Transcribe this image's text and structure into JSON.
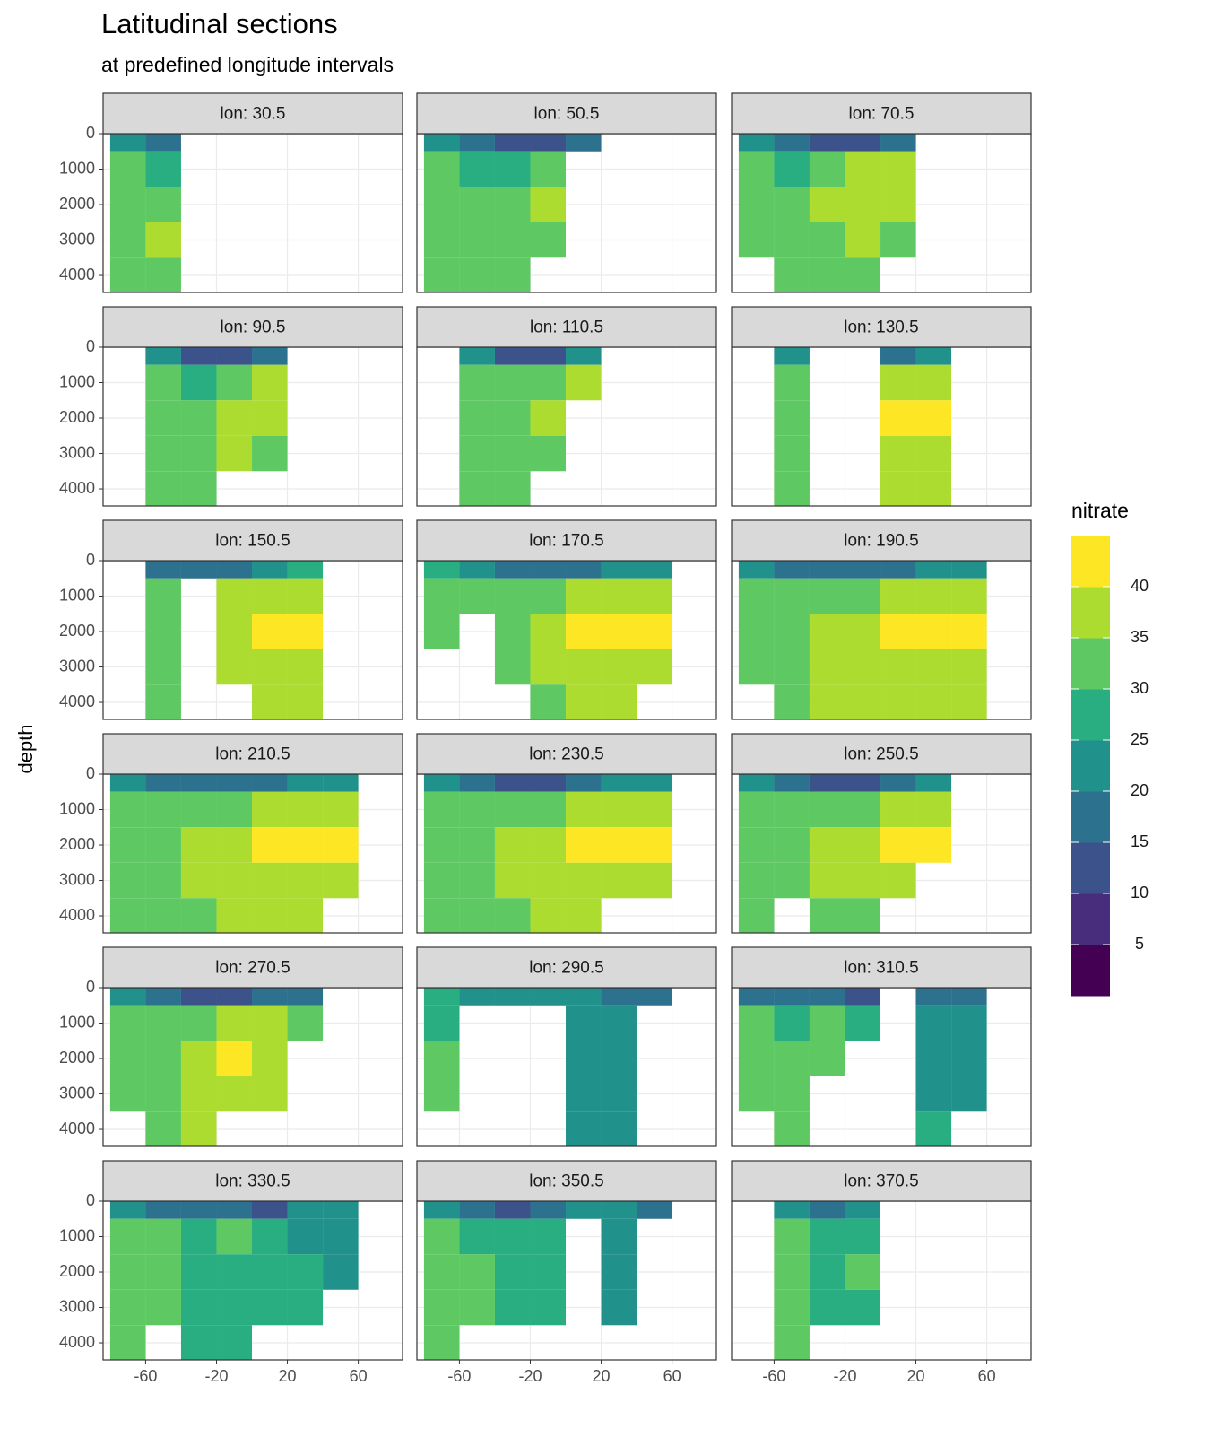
{
  "chart_data": {
    "type": "heatmap",
    "title": "Latitudinal sections",
    "subtitle": "at predefined longitude intervals",
    "ylabel": "depth",
    "legend_title": "nitrate",
    "xlim": [
      -84,
      85
    ],
    "xticks": [
      -60,
      -20,
      20,
      60
    ],
    "ylim": [
      0,
      4480
    ],
    "yticks": [
      0,
      1000,
      2000,
      3000,
      4000
    ],
    "y_reversed": true,
    "grid": true,
    "x": [
      -70,
      -50,
      -30,
      -10,
      10,
      30,
      50
    ],
    "depth": [
      0,
      1000,
      2000,
      3000,
      4000
    ],
    "colorbar": {
      "limits": [
        0,
        45
      ],
      "breaks": [
        5,
        10,
        15,
        20,
        25,
        30,
        35,
        40
      ],
      "colors": [
        "#440154",
        "#472d7b",
        "#3b528b",
        "#2c728e",
        "#21918c",
        "#28ae80",
        "#5ec962",
        "#addc30",
        "#fde725"
      ]
    },
    "panels": [
      {
        "label": "lon: 30.5",
        "values": [
          [
            20,
            15,
            null,
            null,
            null,
            null,
            null
          ],
          [
            32,
            27,
            null,
            null,
            null,
            null,
            null
          ],
          [
            33,
            32,
            null,
            null,
            null,
            null,
            null
          ],
          [
            33,
            36,
            null,
            null,
            null,
            null,
            null
          ],
          [
            33,
            33,
            null,
            null,
            null,
            null,
            null
          ]
        ]
      },
      {
        "label": "lon: 50.5",
        "values": [
          [
            22,
            15,
            12,
            12,
            18,
            null,
            null
          ],
          [
            32,
            28,
            26,
            33,
            null,
            null,
            null
          ],
          [
            33,
            32,
            30,
            38,
            null,
            null,
            null
          ],
          [
            33,
            33,
            33,
            34,
            null,
            null,
            null
          ],
          [
            33,
            33,
            33,
            null,
            null,
            null,
            null
          ]
        ]
      },
      {
        "label": "lon: 70.5",
        "values": [
          [
            22,
            15,
            10,
            12,
            15,
            null,
            null
          ],
          [
            32,
            28,
            30,
            38,
            38,
            null,
            null
          ],
          [
            33,
            33,
            36,
            38,
            38,
            null,
            null
          ],
          [
            33,
            33,
            34,
            35,
            34,
            null,
            null
          ],
          [
            null,
            33,
            33,
            33,
            null,
            null,
            null
          ]
        ]
      },
      {
        "label": "lon: 90.5",
        "values": [
          [
            null,
            22,
            12,
            10,
            15,
            null,
            null
          ],
          [
            null,
            30,
            28,
            33,
            36,
            null,
            null
          ],
          [
            null,
            33,
            34,
            38,
            38,
            null,
            null
          ],
          [
            null,
            33,
            33,
            35,
            34,
            null,
            null
          ],
          [
            null,
            33,
            33,
            null,
            null,
            null,
            null
          ]
        ]
      },
      {
        "label": "lon: 110.5",
        "values": [
          [
            null,
            22,
            12,
            12,
            20,
            null,
            null
          ],
          [
            null,
            30,
            30,
            33,
            36,
            null,
            null
          ],
          [
            null,
            33,
            33,
            36,
            null,
            null,
            null
          ],
          [
            null,
            33,
            33,
            33,
            null,
            null,
            null
          ],
          [
            null,
            33,
            33,
            null,
            null,
            null,
            null
          ]
        ]
      },
      {
        "label": "lon: 130.5",
        "values": [
          [
            null,
            20,
            null,
            null,
            15,
            20,
            null
          ],
          [
            null,
            30,
            null,
            null,
            36,
            37,
            null
          ],
          [
            null,
            33,
            null,
            null,
            42,
            42,
            null
          ],
          [
            null,
            33,
            null,
            null,
            38,
            38,
            null
          ],
          [
            null,
            33,
            null,
            null,
            38,
            38,
            null
          ]
        ]
      },
      {
        "label": "lon: 150.5",
        "values": [
          [
            null,
            18,
            15,
            15,
            20,
            25,
            null
          ],
          [
            null,
            30,
            null,
            36,
            38,
            38,
            null
          ],
          [
            null,
            33,
            null,
            38,
            42,
            42,
            null
          ],
          [
            null,
            33,
            null,
            38,
            38,
            38,
            null
          ],
          [
            null,
            33,
            null,
            null,
            36,
            36,
            null
          ]
        ]
      },
      {
        "label": "lon: 170.5",
        "values": [
          [
            25,
            22,
            15,
            15,
            15,
            20,
            22
          ],
          [
            30,
            30,
            30,
            33,
            36,
            38,
            38
          ],
          [
            33,
            null,
            33,
            38,
            42,
            42,
            42
          ],
          [
            null,
            null,
            33,
            36,
            38,
            38,
            38
          ],
          [
            null,
            null,
            null,
            33,
            36,
            36,
            null
          ]
        ]
      },
      {
        "label": "lon: 190.5",
        "values": [
          [
            22,
            15,
            15,
            15,
            15,
            20,
            22
          ],
          [
            30,
            30,
            30,
            33,
            36,
            38,
            38
          ],
          [
            33,
            33,
            36,
            38,
            42,
            42,
            42
          ],
          [
            33,
            33,
            36,
            38,
            38,
            38,
            38
          ],
          [
            null,
            33,
            36,
            36,
            36,
            36,
            36
          ]
        ]
      },
      {
        "label": "lon: 210.5",
        "values": [
          [
            22,
            15,
            15,
            15,
            15,
            20,
            20
          ],
          [
            33,
            30,
            30,
            33,
            36,
            38,
            38
          ],
          [
            33,
            33,
            36,
            38,
            42,
            42,
            42
          ],
          [
            33,
            33,
            36,
            38,
            38,
            38,
            38
          ],
          [
            33,
            33,
            33,
            36,
            36,
            36,
            null
          ]
        ]
      },
      {
        "label": "lon: 230.5",
        "values": [
          [
            22,
            15,
            12,
            12,
            15,
            20,
            20
          ],
          [
            33,
            30,
            30,
            33,
            38,
            38,
            38
          ],
          [
            33,
            33,
            36,
            38,
            42,
            42,
            42
          ],
          [
            33,
            33,
            36,
            38,
            38,
            38,
            38
          ],
          [
            33,
            33,
            33,
            36,
            36,
            null,
            null
          ]
        ]
      },
      {
        "label": "lon: 250.5",
        "values": [
          [
            22,
            15,
            12,
            12,
            18,
            20,
            null
          ],
          [
            33,
            30,
            30,
            33,
            38,
            38,
            null
          ],
          [
            33,
            33,
            36,
            38,
            42,
            42,
            null
          ],
          [
            33,
            33,
            36,
            36,
            38,
            null,
            null
          ],
          [
            33,
            null,
            33,
            33,
            null,
            null,
            null
          ]
        ]
      },
      {
        "label": "lon: 270.5",
        "values": [
          [
            22,
            15,
            10,
            12,
            15,
            18,
            null
          ],
          [
            30,
            30,
            33,
            36,
            38,
            30,
            null
          ],
          [
            33,
            33,
            36,
            42,
            38,
            null,
            null
          ],
          [
            33,
            33,
            36,
            38,
            36,
            null,
            null
          ],
          [
            null,
            33,
            36,
            null,
            null,
            null,
            null
          ]
        ]
      },
      {
        "label": "lon: 290.5",
        "values": [
          [
            25,
            20,
            20,
            20,
            20,
            18,
            15
          ],
          [
            25,
            null,
            null,
            null,
            20,
            20,
            null
          ],
          [
            30,
            null,
            null,
            null,
            20,
            20,
            null
          ],
          [
            30,
            null,
            null,
            null,
            20,
            20,
            null
          ],
          [
            null,
            null,
            null,
            null,
            20,
            20,
            null
          ]
        ]
      },
      {
        "label": "lon: 310.5",
        "values": [
          [
            15,
            15,
            18,
            12,
            null,
            15,
            15
          ],
          [
            30,
            28,
            30,
            25,
            null,
            20,
            20
          ],
          [
            33,
            30,
            33,
            null,
            null,
            20,
            20
          ],
          [
            33,
            33,
            null,
            null,
            null,
            22,
            20
          ],
          [
            null,
            33,
            null,
            null,
            null,
            25,
            null
          ]
        ]
      },
      {
        "label": "lon: 330.5",
        "values": [
          [
            22,
            15,
            15,
            15,
            12,
            20,
            20
          ],
          [
            30,
            30,
            28,
            30,
            28,
            22,
            20
          ],
          [
            33,
            33,
            25,
            25,
            25,
            25,
            20
          ],
          [
            33,
            33,
            25,
            25,
            25,
            25,
            null
          ],
          [
            33,
            null,
            28,
            28,
            null,
            null,
            null
          ]
        ]
      },
      {
        "label": "lon: 350.5",
        "values": [
          [
            22,
            15,
            12,
            15,
            20,
            20,
            18
          ],
          [
            33,
            28,
            28,
            25,
            null,
            20,
            null
          ],
          [
            33,
            30,
            25,
            25,
            null,
            20,
            null
          ],
          [
            33,
            30,
            28,
            25,
            null,
            20,
            null
          ],
          [
            33,
            null,
            null,
            null,
            null,
            null,
            null
          ]
        ]
      },
      {
        "label": "lon: 370.5",
        "values": [
          [
            null,
            20,
            15,
            20,
            null,
            null,
            null
          ],
          [
            null,
            30,
            25,
            28,
            null,
            null,
            null
          ],
          [
            null,
            33,
            28,
            30,
            null,
            null,
            null
          ],
          [
            null,
            33,
            28,
            25,
            null,
            null,
            null
          ],
          [
            null,
            33,
            null,
            null,
            null,
            null,
            null
          ]
        ]
      }
    ]
  }
}
